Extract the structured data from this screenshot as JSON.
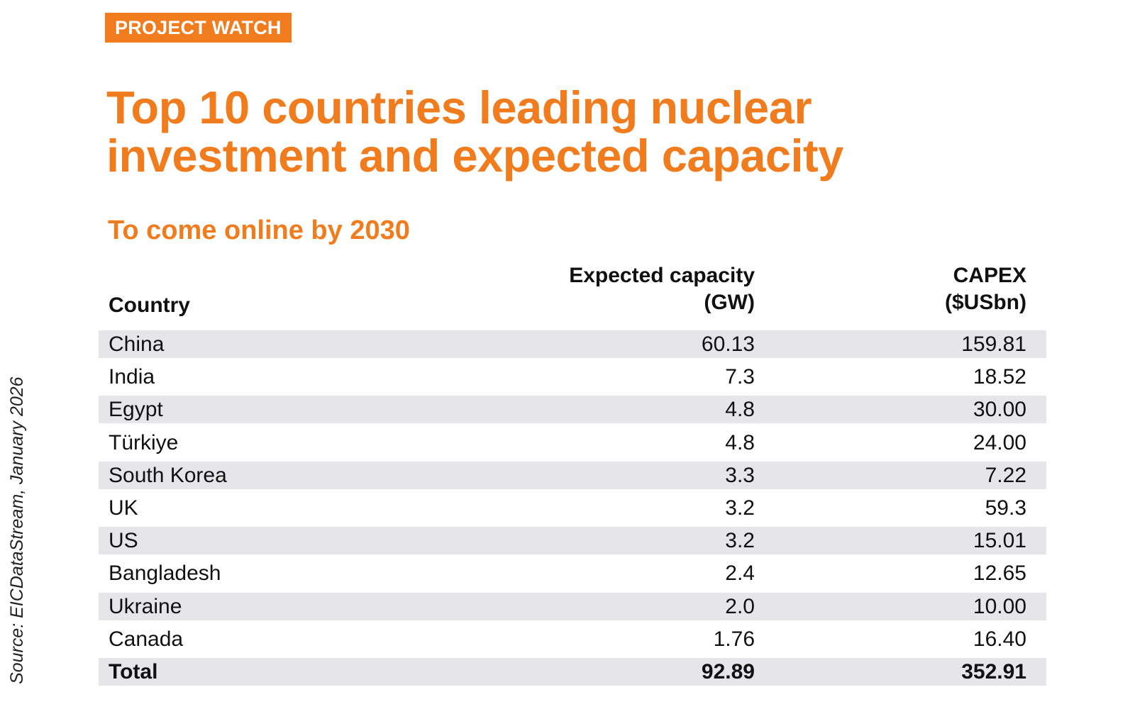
{
  "tag": "PROJECT WATCH",
  "title": "Top 10 countries leading nuclear investment and expected capacity",
  "subtitle": "To come online by 2030",
  "source": "Source: EICDataStream, January 2026",
  "colors": {
    "accent": "#f07c1e",
    "row_shade": "#e6e6e8",
    "text": "#111111"
  },
  "chart_data": {
    "type": "table",
    "title": "Top 10 countries leading nuclear investment and expected capacity",
    "subtitle": "To come online by 2030",
    "columns": {
      "country": "Country",
      "capacity_line1": "Expected capacity",
      "capacity_line2": "(GW)",
      "capex_line1": "CAPEX",
      "capex_line2": "($USbn)"
    },
    "rows": [
      {
        "country": "China",
        "capacity": "60.13",
        "capex": "159.81"
      },
      {
        "country": "India",
        "capacity": "7.3",
        "capex": "18.52"
      },
      {
        "country": "Egypt",
        "capacity": "4.8",
        "capex": "30.00"
      },
      {
        "country": "Türkiye",
        "capacity": "4.8",
        "capex": "24.00"
      },
      {
        "country": "South Korea",
        "capacity": "3.3",
        "capex": "7.22"
      },
      {
        "country": "UK",
        "capacity": "3.2",
        "capex": "59.3"
      },
      {
        "country": "US",
        "capacity": "3.2",
        "capex": "15.01"
      },
      {
        "country": "Bangladesh",
        "capacity": "2.4",
        "capex": "12.65"
      },
      {
        "country": "Ukraine",
        "capacity": "2.0",
        "capex": "10.00"
      },
      {
        "country": "Canada",
        "capacity": "1.76",
        "capex": "16.40"
      }
    ],
    "total": {
      "country": "Total",
      "capacity": "92.89",
      "capex": "352.91"
    }
  }
}
